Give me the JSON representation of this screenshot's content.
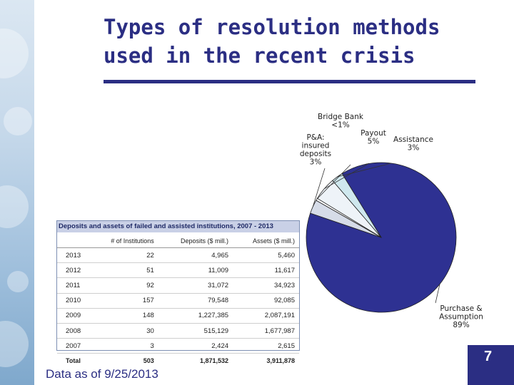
{
  "slide": {
    "title": "Types of resolution methods used in the recent crisis",
    "footnote": "Data as of 9/25/2013",
    "page_number": "7"
  },
  "colors": {
    "title": "#2b2e83",
    "purchase_assumption": "#2e3192",
    "assistance": "#cfe8ee",
    "payout": "#eef3f8",
    "pa_insured": "#d6dce8",
    "bridge_bank": "#ffffff"
  },
  "chart_data": {
    "type": "pie",
    "title": "",
    "slices": [
      {
        "label": "Purchase & Assumption",
        "value_label": "89%",
        "value": 89,
        "color": "#2e3192"
      },
      {
        "label": "P&A: insured deposits",
        "value_label": "3%",
        "value": 3,
        "color": "#d6dce8"
      },
      {
        "label": "Bridge Bank",
        "value_label": "<1%",
        "value": 0.5,
        "color": "#ffffff"
      },
      {
        "label": "Payout",
        "value_label": "5%",
        "value": 5,
        "color": "#eef3f8"
      },
      {
        "label": "Assistance",
        "value_label": "3%",
        "value": 2.5,
        "color": "#cfe8ee"
      }
    ]
  },
  "table": {
    "caption": "Deposits and assets of failed and assisted institutions, 2007 - 2013",
    "headers": [
      "",
      "# of Institutions",
      "Deposits ($ mill.)",
      "Assets ($ mill.)"
    ],
    "rows": [
      [
        "2013",
        "22",
        "4,965",
        "5,460"
      ],
      [
        "2012",
        "51",
        "11,009",
        "11,617"
      ],
      [
        "2011",
        "92",
        "31,072",
        "34,923"
      ],
      [
        "2010",
        "157",
        "79,548",
        "92,085"
      ],
      [
        "2009",
        "148",
        "1,227,385",
        "2,087,191"
      ],
      [
        "2008",
        "30",
        "515,129",
        "1,677,987"
      ],
      [
        "2007",
        "3",
        "2,424",
        "2,615"
      ]
    ],
    "total": [
      "Total",
      "503",
      "1,871,532",
      "3,911,878"
    ]
  }
}
